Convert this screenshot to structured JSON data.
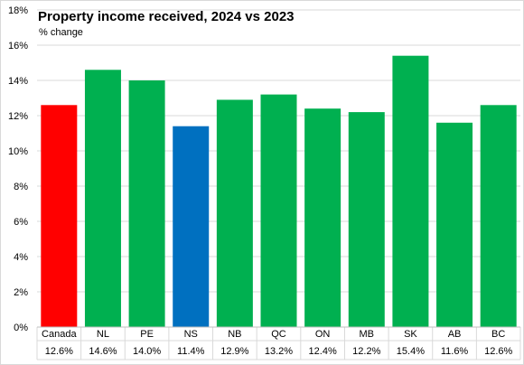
{
  "chart_data": {
    "type": "bar",
    "title": "Property income received, 2024 vs 2023",
    "subtitle": "% change",
    "xlabel": "",
    "ylabel": "",
    "ylim": [
      0,
      18
    ],
    "y_ticks": [
      "0%",
      "2%",
      "4%",
      "6%",
      "8%",
      "10%",
      "12%",
      "14%",
      "16%",
      "18%"
    ],
    "y_tick_values": [
      0,
      2,
      4,
      6,
      8,
      10,
      12,
      14,
      16,
      18
    ],
    "grid": true,
    "legend": "none",
    "categories": [
      "Canada",
      "NL",
      "PE",
      "NS",
      "NB",
      "QC",
      "ON",
      "MB",
      "SK",
      "AB",
      "BC"
    ],
    "values": [
      12.6,
      14.6,
      14.0,
      11.4,
      12.9,
      13.2,
      12.4,
      12.2,
      15.4,
      11.6,
      12.6
    ],
    "value_labels": [
      "12.6%",
      "14.6%",
      "14.0%",
      "11.4%",
      "12.9%",
      "13.2%",
      "12.4%",
      "12.2%",
      "15.4%",
      "11.6%",
      "12.6%"
    ],
    "colors": [
      "#ff0000",
      "#00b050",
      "#00b050",
      "#0070c0",
      "#00b050",
      "#00b050",
      "#00b050",
      "#00b050",
      "#00b050",
      "#00b050",
      "#00b050"
    ]
  }
}
